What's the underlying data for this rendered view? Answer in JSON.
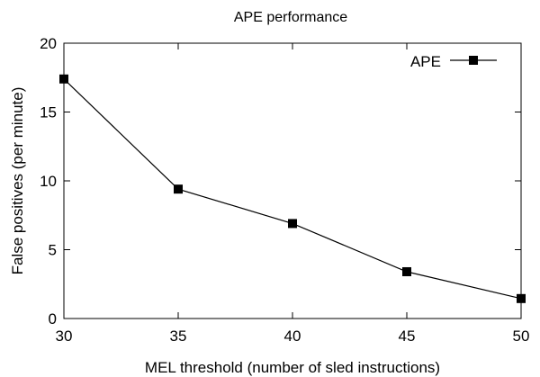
{
  "chart_data": {
    "type": "line",
    "title": "APE performance",
    "xlabel": "MEL threshold (number of sled instructions)",
    "ylabel": "False positives (per minute)",
    "xlim": [
      30,
      50
    ],
    "ylim": [
      0,
      20
    ],
    "xticks": [
      "30",
      "35",
      "40",
      "45",
      "50"
    ],
    "yticks": [
      "0",
      "5",
      "10",
      "15",
      "20"
    ],
    "grid": false,
    "legend_position": "top-right",
    "series": [
      {
        "name": "APE",
        "color": "#000000",
        "marker": "square",
        "x": [
          30,
          35,
          40,
          45,
          50
        ],
        "y": [
          17.4,
          9.4,
          6.9,
          3.4,
          1.45
        ]
      }
    ]
  }
}
